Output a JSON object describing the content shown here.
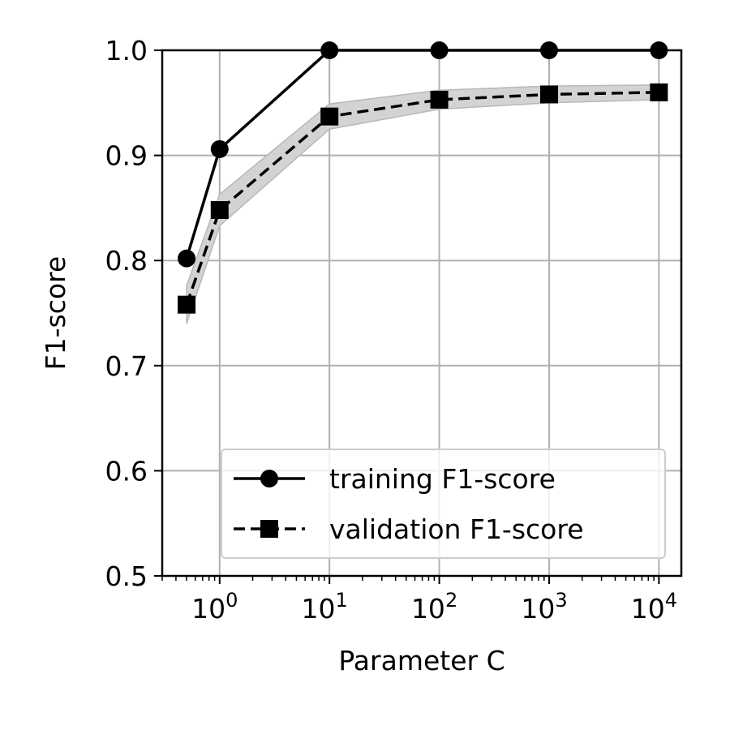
{
  "chart_data": {
    "type": "line",
    "title": "",
    "xlabel": "Parameter C",
    "ylabel": "F1-score",
    "xscale": "log",
    "xlim": [
      0.3,
      16000
    ],
    "ylim": [
      0.5,
      1.0
    ],
    "grid": true,
    "legend_position": "lower-right",
    "x": [
      0.5,
      1,
      10,
      100,
      1000,
      10000
    ],
    "x_tick_labels": [
      {
        "value": 1,
        "base": "10",
        "exp": "0"
      },
      {
        "value": 10,
        "base": "10",
        "exp": "1"
      },
      {
        "value": 100,
        "base": "10",
        "exp": "2"
      },
      {
        "value": 1000,
        "base": "10",
        "exp": "3"
      },
      {
        "value": 10000,
        "base": "10",
        "exp": "4"
      }
    ],
    "y_ticks": [
      0.5,
      0.6,
      0.7,
      0.8,
      0.9,
      1.0
    ],
    "y_tick_labels": [
      "0.5",
      "0.6",
      "0.7",
      "0.8",
      "0.9",
      "1.0"
    ],
    "series": [
      {
        "name": "training F1-score",
        "values": [
          0.802,
          0.906,
          1.0,
          1.0,
          1.0,
          1.0
        ],
        "line_style": "solid",
        "marker": "circle",
        "color": "#000000"
      },
      {
        "name": "validation F1-score",
        "values": [
          0.758,
          0.848,
          0.937,
          0.953,
          0.958,
          0.96
        ],
        "band_lower": [
          0.74,
          0.833,
          0.925,
          0.944,
          0.95,
          0.953
        ],
        "band_upper": [
          0.776,
          0.863,
          0.949,
          0.962,
          0.966,
          0.967
        ],
        "band_color": "#d3d3d3",
        "line_style": "dashed",
        "marker": "square",
        "color": "#000000"
      }
    ]
  }
}
